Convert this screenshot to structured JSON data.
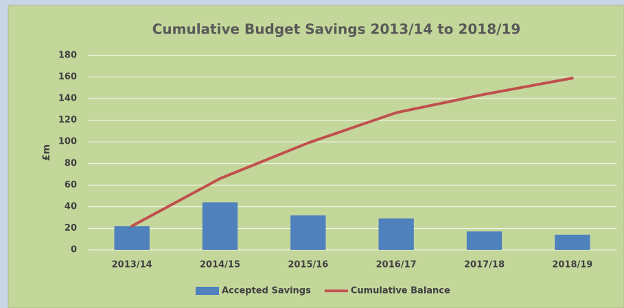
{
  "chart_data": {
    "type": "bar",
    "title": "Cumulative Budget Savings 2013/14 to 2018/19",
    "y_label": "£m",
    "categories": [
      "2013/14",
      "2014/15",
      "2015/16",
      "2016/17",
      "2017/18",
      "2018/19"
    ],
    "series": [
      {
        "name": "Accepted Savings",
        "type": "bar",
        "color": "#4f81bd",
        "values": [
          22,
          44,
          32,
          29,
          17,
          14
        ]
      },
      {
        "name": "Cumulative Balance",
        "type": "line",
        "color": "#c0504d",
        "values": [
          22,
          66,
          99,
          127,
          144,
          159
        ]
      }
    ],
    "ylim": [
      0,
      180
    ],
    "yticks": [
      0,
      20,
      40,
      60,
      80,
      100,
      120,
      140,
      160,
      180
    ],
    "grid": true,
    "legend": "bottom"
  }
}
